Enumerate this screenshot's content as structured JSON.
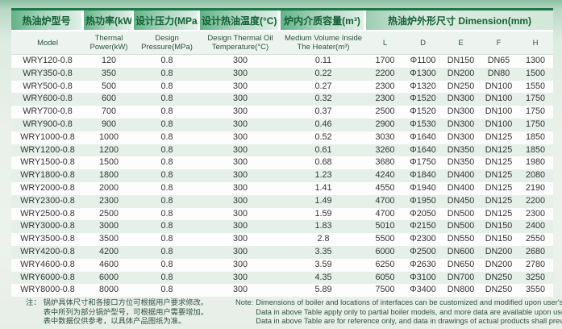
{
  "colors": {
    "accent_green": "#1d7747",
    "header_text_green": "#145f36",
    "row_stripe_green": "#e6f0e9",
    "header_gradient_start": "#5fb287"
  },
  "table": {
    "header_zh": [
      "热油炉型号",
      "热功率(kW)",
      "设计压力(MPa)",
      "设计热油温度(°C)",
      "炉内介质容量(m³)"
    ],
    "header_dimension": "热油炉外形尺寸  Dimension(mm)",
    "header_en": [
      "Model",
      "Thermal Power(kW)",
      "Design Pressure(MPa)",
      "Design Thermal Oil Temperature(°C)",
      "Medium Volume Inside The Heater(m³)",
      "L",
      "D",
      "E",
      "F",
      "H"
    ],
    "rows": [
      [
        "WRY120-0.8",
        "120",
        "0.8",
        "300",
        "0.11",
        "1700",
        "Φ1100",
        "DN150",
        "DN65",
        "1300"
      ],
      [
        "WRY350-0.8",
        "350",
        "0.8",
        "300",
        "0.22",
        "2200",
        "Φ1300",
        "DN200",
        "DN80",
        "1500"
      ],
      [
        "WRY500-0.8",
        "500",
        "0.8",
        "300",
        "0.27",
        "2300",
        "Φ1320",
        "DN250",
        "DN100",
        "1550"
      ],
      [
        "WRY600-0.8",
        "600",
        "0.8",
        "300",
        "0.32",
        "2300",
        "Φ1520",
        "DN300",
        "DN100",
        "1750"
      ],
      [
        "WRY700-0.8",
        "700",
        "0.8",
        "300",
        "0.37",
        "2500",
        "Φ1520",
        "DN300",
        "DN100",
        "1750"
      ],
      [
        "WRY900-0.8",
        "900",
        "0.8",
        "300",
        "0.46",
        "2900",
        "Φ1530",
        "DN300",
        "DN100",
        "1750"
      ],
      [
        "WRY1000-0.8",
        "1000",
        "0.8",
        "300",
        "0.52",
        "3030",
        "Φ1640",
        "DN300",
        "DN125",
        "1850"
      ],
      [
        "WRY1200-0.8",
        "1200",
        "0.8",
        "300",
        "0.61",
        "3260",
        "Φ1640",
        "DN350",
        "DN125",
        "1850"
      ],
      [
        "WRY1500-0.8",
        "1500",
        "0.8",
        "300",
        "0.68",
        "3680",
        "Φ1750",
        "DN350",
        "DN125",
        "1980"
      ],
      [
        "WRY1800-0.8",
        "1800",
        "0.8",
        "300",
        "1.23",
        "4240",
        "Φ1840",
        "DN400",
        "DN125",
        "2080"
      ],
      [
        "WRY2000-0.8",
        "2000",
        "0.8",
        "300",
        "1.41",
        "4550",
        "Φ1940",
        "DN400",
        "DN125",
        "2190"
      ],
      [
        "WRY2300-0.8",
        "2300",
        "0.8",
        "300",
        "1.49",
        "4700",
        "Φ1950",
        "DN450",
        "DN125",
        "2200"
      ],
      [
        "WRY2500-0.8",
        "2500",
        "0.8",
        "300",
        "1.59",
        "4700",
        "Φ2050",
        "DN500",
        "DN125",
        "2300"
      ],
      [
        "WRY3000-0.8",
        "3000",
        "0.8",
        "300",
        "1.83",
        "5010",
        "Φ2150",
        "DN500",
        "DN150",
        "2400"
      ],
      [
        "WRY3500-0.8",
        "3500",
        "0.8",
        "300",
        "2.8",
        "5500",
        "Φ2300",
        "DN550",
        "DN150",
        "2550"
      ],
      [
        "WRY4200-0.8",
        "4200",
        "0.8",
        "300",
        "3.35",
        "6000",
        "Φ2500",
        "DN600",
        "DN200",
        "2680"
      ],
      [
        "WRY4600-0.8",
        "4600",
        "0.8",
        "300",
        "3.59",
        "6250",
        "Φ2630",
        "DN650",
        "DN200",
        "2780"
      ],
      [
        "WRY6000-0.8",
        "6000",
        "0.8",
        "300",
        "4.35",
        "6050",
        "Φ3100",
        "DN700",
        "DN250",
        "3250"
      ],
      [
        "WRY8000-0.8",
        "8000",
        "0.8",
        "300",
        "5.89",
        "7500",
        "Φ3400",
        "DN800",
        "DN250",
        "3550"
      ]
    ]
  },
  "notes": {
    "zh": {
      "label": "注：",
      "lines": [
        "锅炉具体尺寸和各接口方位可根据用户要求修改。",
        "表中所列为部分锅炉型号，可根据用户需要增加。",
        "表中数据仅供参考，以具体产品图纸为准。"
      ]
    },
    "en": {
      "label": "Note:",
      "lines": [
        "Dimensions of boiler and locations of interfaces can be customized and modified upon user's request.",
        "Data in above Table apply only to partial boiler models, and more data are available upon user's request.",
        "Data in above Table are for reference only, and data in drawings of actual products shall prevail."
      ]
    }
  }
}
